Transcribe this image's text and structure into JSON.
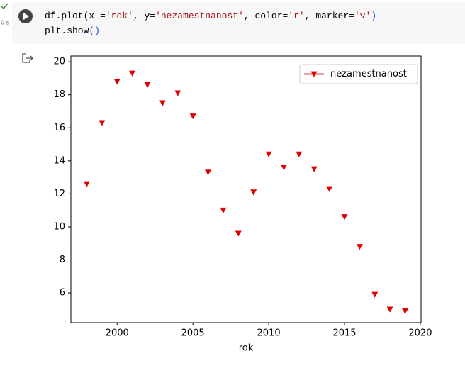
{
  "cell": {
    "status": "0 s",
    "lines": [
      [
        "df.plot(x =",
        "'rok'",
        ", y=",
        "'nezamestnanost'",
        ", color=",
        "'r'",
        ", marker=",
        "'v'",
        ")"
      ],
      [
        "plt.show",
        "()"
      ]
    ]
  },
  "chart_data": {
    "type": "line",
    "xlabel": "rok",
    "x": [
      1998,
      1999,
      2000,
      2001,
      2002,
      2003,
      2004,
      2005,
      2006,
      2007,
      2008,
      2009,
      2010,
      2011,
      2012,
      2013,
      2014,
      2015,
      2016,
      2017,
      2018,
      2019
    ],
    "series": [
      {
        "name": "nezamestnanost",
        "color": "#e00000",
        "marker": "v",
        "values": [
          12.6,
          16.3,
          18.8,
          19.3,
          18.6,
          17.5,
          18.1,
          16.7,
          13.3,
          11.0,
          9.6,
          12.1,
          14.4,
          13.6,
          14.4,
          13.5,
          12.3,
          10.6,
          8.8,
          5.9,
          5.0,
          4.9
        ]
      }
    ],
    "xlim": [
      1996.95,
      2020.05
    ],
    "xticks": [
      2000,
      2005,
      2010,
      2015,
      2020
    ],
    "ylim": [
      4.2,
      20.35
    ],
    "yticks": [
      6,
      8,
      10,
      12,
      14,
      16,
      18,
      20
    ],
    "legend": "upper right",
    "grid": false
  }
}
